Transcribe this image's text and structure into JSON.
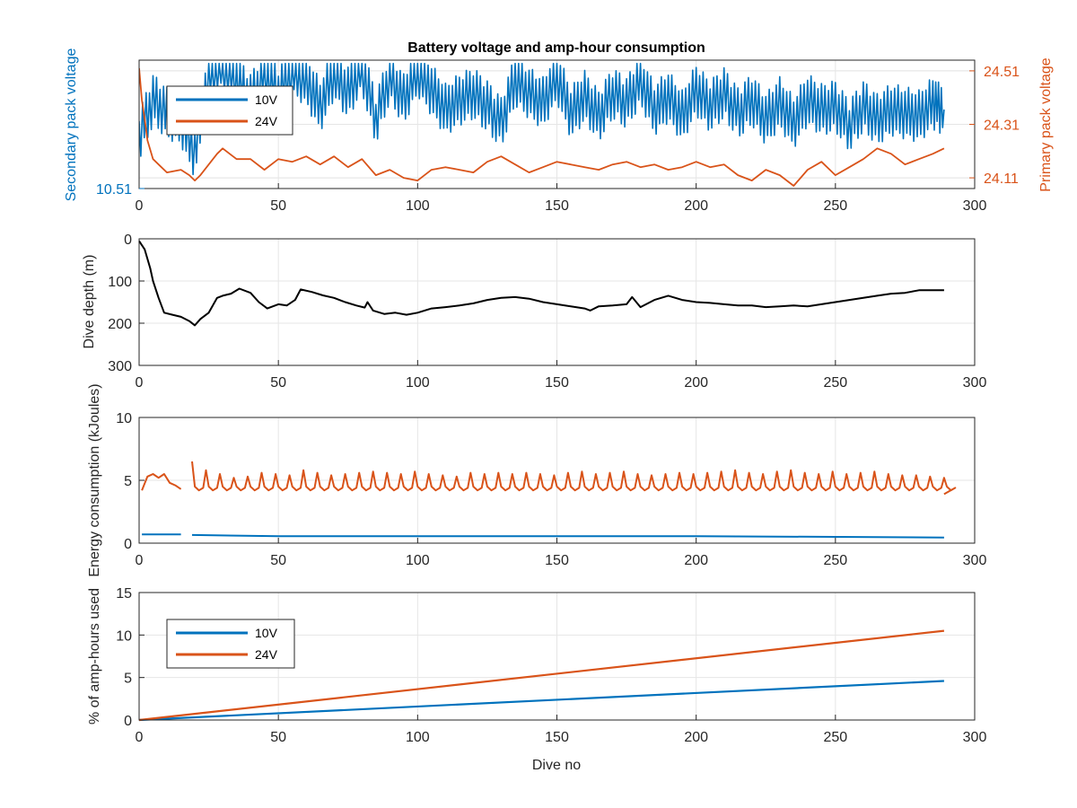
{
  "figure": {
    "title": "Battery voltage and amp-hour consumption",
    "colors": {
      "blue": "#0072BD",
      "orange": "#D95319",
      "black": "#000000",
      "grid": "#e6e6e6"
    }
  },
  "chart_data": [
    {
      "type": "line",
      "title": "Battery voltage and amp-hour consumption",
      "xlabel": "",
      "xlim": [
        0,
        300
      ],
      "xticks": [
        0,
        50,
        100,
        150,
        200,
        250,
        300
      ],
      "ylabel_left": "Secondary pack voltage",
      "ylabel_right": "Primary pack voltage",
      "y_left": {
        "ticks": [
          "10.51"
        ],
        "tick_values": [
          10.51
        ],
        "range_estimate": [
          10.51,
          10.9
        ]
      },
      "y_right": {
        "ticks": [
          "24.11",
          "24.31",
          "24.51"
        ],
        "tick_values": [
          24.11,
          24.31,
          24.51
        ],
        "ylim": [
          24.07,
          24.55
        ]
      },
      "legend": {
        "position": "top-left",
        "entries": [
          "10V",
          "24V"
        ]
      },
      "grid": true,
      "series": [
        {
          "name": "10V",
          "axis": "left",
          "color": "#0072BD",
          "x": [
            0,
            5,
            10,
            15,
            20,
            25,
            30,
            35,
            40,
            45,
            50,
            55,
            60,
            65,
            70,
            75,
            80,
            85,
            90,
            95,
            100,
            105,
            110,
            115,
            120,
            125,
            130,
            135,
            140,
            145,
            150,
            155,
            160,
            165,
            170,
            175,
            180,
            185,
            190,
            195,
            200,
            205,
            210,
            215,
            220,
            225,
            230,
            235,
            240,
            245,
            250,
            255,
            260,
            265,
            270,
            275,
            280,
            285,
            289
          ],
          "y": [
            10.67,
            10.78,
            10.74,
            10.72,
            10.62,
            10.86,
            10.89,
            10.84,
            10.78,
            10.86,
            10.8,
            10.87,
            10.84,
            10.76,
            10.86,
            10.8,
            10.88,
            10.72,
            10.85,
            10.78,
            10.87,
            10.81,
            10.75,
            10.78,
            10.8,
            10.76,
            10.71,
            10.84,
            10.8,
            10.77,
            10.85,
            10.74,
            10.79,
            10.73,
            10.8,
            10.77,
            10.84,
            10.75,
            10.79,
            10.73,
            10.81,
            10.76,
            10.8,
            10.74,
            10.78,
            10.72,
            10.77,
            10.71,
            10.78,
            10.75,
            10.76,
            10.7,
            10.76,
            10.72,
            10.75,
            10.74,
            10.73,
            10.77,
            10.75
          ]
        },
        {
          "name": "24V",
          "axis": "right",
          "color": "#D95319",
          "x": [
            0,
            1,
            2,
            3,
            5,
            8,
            10,
            15,
            18,
            20,
            22,
            25,
            28,
            30,
            35,
            40,
            45,
            50,
            55,
            60,
            65,
            70,
            75,
            80,
            85,
            90,
            95,
            100,
            105,
            110,
            115,
            120,
            125,
            130,
            135,
            140,
            145,
            150,
            155,
            160,
            165,
            170,
            175,
            180,
            185,
            190,
            195,
            200,
            205,
            210,
            215,
            220,
            225,
            230,
            235,
            240,
            245,
            250,
            255,
            260,
            265,
            270,
            275,
            280,
            285,
            289
          ],
          "y": [
            24.52,
            24.4,
            24.33,
            24.25,
            24.18,
            24.15,
            24.13,
            24.14,
            24.12,
            24.1,
            24.12,
            24.16,
            24.2,
            24.22,
            24.18,
            24.18,
            24.14,
            24.18,
            24.17,
            24.19,
            24.16,
            24.19,
            24.15,
            24.18,
            24.12,
            24.14,
            24.11,
            24.1,
            24.14,
            24.15,
            24.14,
            24.13,
            24.17,
            24.19,
            24.16,
            24.13,
            24.15,
            24.17,
            24.16,
            24.15,
            24.14,
            24.16,
            24.17,
            24.15,
            24.16,
            24.14,
            24.15,
            24.17,
            24.15,
            24.16,
            24.12,
            24.1,
            24.14,
            24.12,
            24.08,
            24.14,
            24.17,
            24.12,
            24.15,
            24.18,
            24.22,
            24.2,
            24.16,
            24.18,
            24.2,
            24.22
          ]
        }
      ]
    },
    {
      "type": "line",
      "xlabel": "",
      "ylabel": "Dive depth (m)",
      "xlim": [
        0,
        300
      ],
      "xticks": [
        0,
        50,
        100,
        150,
        200,
        250,
        300
      ],
      "ylim": [
        0,
        300
      ],
      "y_reversed": true,
      "yticks": [
        0,
        100,
        200,
        300
      ],
      "grid": true,
      "series": [
        {
          "color": "#000000",
          "x": [
            0,
            2,
            4,
            5,
            7,
            9,
            12,
            15,
            18,
            20,
            22,
            25,
            28,
            30,
            33,
            36,
            40,
            43,
            46,
            50,
            53,
            56,
            58,
            62,
            66,
            70,
            74,
            78,
            81,
            82,
            84,
            88,
            92,
            96,
            100,
            105,
            110,
            115,
            120,
            125,
            130,
            135,
            140,
            145,
            150,
            155,
            160,
            162,
            165,
            170,
            175,
            177,
            180,
            185,
            190,
            195,
            200,
            205,
            210,
            215,
            220,
            225,
            230,
            235,
            240,
            245,
            250,
            255,
            260,
            265,
            270,
            275,
            280,
            285,
            289
          ],
          "y": [
            5,
            25,
            70,
            100,
            140,
            175,
            180,
            185,
            195,
            205,
            190,
            175,
            140,
            135,
            130,
            118,
            128,
            150,
            165,
            155,
            158,
            145,
            120,
            126,
            134,
            140,
            150,
            158,
            163,
            150,
            170,
            178,
            175,
            180,
            175,
            165,
            162,
            158,
            153,
            145,
            140,
            138,
            142,
            150,
            155,
            160,
            165,
            170,
            160,
            158,
            155,
            138,
            162,
            145,
            135,
            145,
            150,
            152,
            155,
            158,
            158,
            162,
            160,
            158,
            160,
            155,
            150,
            145,
            140,
            135,
            130,
            128,
            122,
            122,
            122
          ]
        }
      ]
    },
    {
      "type": "line",
      "xlabel": "",
      "ylabel": "Energy consumption (kJoules)",
      "xlim": [
        0,
        300
      ],
      "xticks": [
        0,
        50,
        100,
        150,
        200,
        250,
        300
      ],
      "ylim": [
        0,
        10
      ],
      "yticks": [
        0,
        5,
        10
      ],
      "grid": true,
      "note": "Orange series oscillates between about 4.2 (baseline) and 5.5-6.0 (peaks) every ~5 dives; gap between dives 15 and 19.",
      "series": [
        {
          "color": "#0072BD",
          "x": [
            1,
            15,
            19,
            50,
            100,
            150,
            200,
            250,
            289
          ],
          "y": [
            0.7,
            0.7,
            0.65,
            0.55,
            0.55,
            0.55,
            0.55,
            0.5,
            0.45
          ]
        },
        {
          "color": "#D95319",
          "baseline": 4.2,
          "peak_period": 5,
          "x_start": 19,
          "x_end": 289,
          "first_segment": {
            "x": [
              1,
              3,
              5,
              7,
              9,
              11,
              13,
              15
            ],
            "y": [
              4.2,
              5.3,
              5.5,
              5.2,
              5.5,
              4.8,
              4.6,
              4.3
            ]
          },
          "peaks": [
            6.5,
            5.8,
            5.5,
            5.2,
            5.3,
            5.6,
            5.5,
            5.4,
            5.8,
            5.6,
            5.4,
            5.5,
            5.6,
            5.7,
            5.6,
            5.5,
            5.7,
            5.5,
            5.4,
            5.3,
            5.6,
            5.5,
            5.6,
            5.5,
            5.6,
            5.5,
            5.4,
            5.6,
            5.7,
            5.5,
            5.6,
            5.7,
            5.5,
            5.4,
            5.5,
            5.6,
            5.5,
            5.6,
            5.7,
            5.8,
            5.6,
            5.5,
            5.7,
            5.8,
            5.6,
            5.5,
            5.7,
            5.5,
            5.6,
            5.7,
            5.5,
            5.4,
            5.4,
            5.3,
            5.2
          ],
          "end_value": 3.9
        }
      ]
    },
    {
      "type": "line",
      "xlabel": "Dive no",
      "ylabel": "% of amp-hours used",
      "xlim": [
        0,
        300
      ],
      "xticks": [
        0,
        50,
        100,
        150,
        200,
        250,
        300
      ],
      "ylim": [
        0,
        15
      ],
      "yticks": [
        0,
        5,
        10,
        15
      ],
      "legend": {
        "position": "top-left",
        "entries": [
          "10V",
          "24V"
        ]
      },
      "grid": true,
      "series": [
        {
          "name": "10V",
          "color": "#0072BD",
          "x": [
            0,
            289
          ],
          "y": [
            0,
            4.6
          ]
        },
        {
          "name": "24V",
          "color": "#D95319",
          "x": [
            0,
            289
          ],
          "y": [
            0,
            10.5
          ]
        }
      ]
    }
  ]
}
